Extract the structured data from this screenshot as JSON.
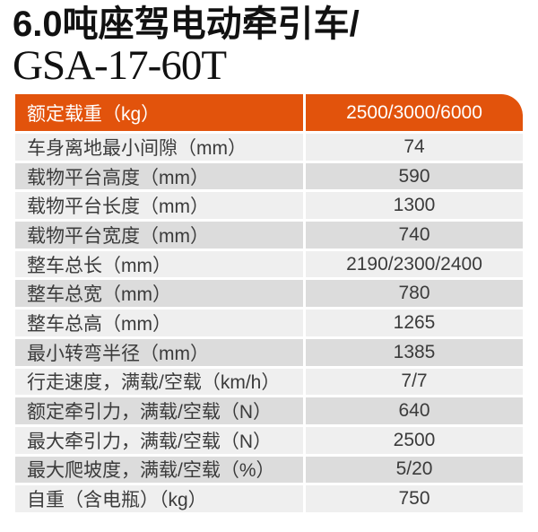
{
  "page": {
    "title_line1": "6.0吨座驾电动牵引车/",
    "title_line2": "GSA-17-60T"
  },
  "colors": {
    "accent_orange": "#e2530c",
    "row_light": "#efefef",
    "row_dark": "#dcdcdc",
    "body_text": "#3b3b3b",
    "header_text": "#ffffff",
    "title_text": "#111111"
  },
  "table": {
    "header": {
      "label": "额定载重（kg）",
      "value": "2500/3000/6000"
    },
    "rows": [
      {
        "label": "车身离地最小间隙（mm）",
        "value": "74"
      },
      {
        "label": "载物平台高度（mm）",
        "value": "590"
      },
      {
        "label": "载物平台长度（mm）",
        "value": "1300"
      },
      {
        "label": "载物平台宽度（mm）",
        "value": "740"
      },
      {
        "label": "整车总长（mm）",
        "value": "2190/2300/2400"
      },
      {
        "label": "整车总宽（mm）",
        "value": "780"
      },
      {
        "label": "整车总高（mm）",
        "value": "1265"
      },
      {
        "label": "最小转弯半径（mm）",
        "value": "1385"
      },
      {
        "label": "行走速度，满载/空载（km/h）",
        "value": "7/7"
      },
      {
        "label": "额定牵引力，满载/空载（N）",
        "value": "640"
      },
      {
        "label": "最大牵引力，满载/空载（N）",
        "value": "2500"
      },
      {
        "label": "最大爬坡度，满载/空载（%）",
        "value": "5/20"
      },
      {
        "label": "自重（含电瓶）（kg）",
        "value": "750"
      }
    ]
  }
}
